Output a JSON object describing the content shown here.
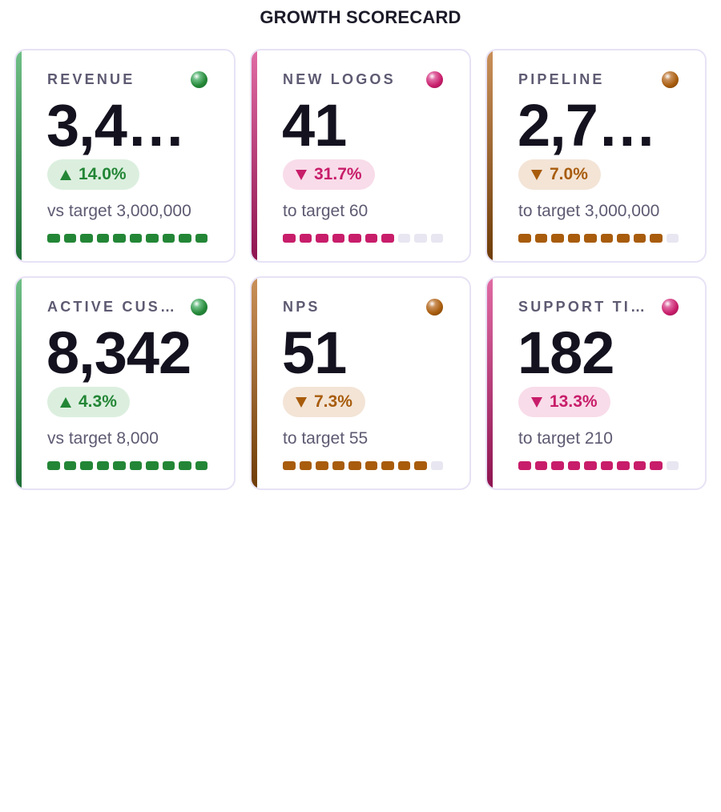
{
  "header": {
    "title": "GROWTH SCORECARD"
  },
  "colors": {
    "green": {
      "accent_top": "#6fbf86",
      "accent_bottom": "#1f6e36",
      "main": "#238636",
      "badge_bg": "#dcefdf",
      "badge_text": "#238636"
    },
    "pink": {
      "accent_top": "#e06ba4",
      "accent_bottom": "#8e1450",
      "main": "#c81d6a",
      "badge_bg": "#f8dce9",
      "badge_text": "#c81d6a"
    },
    "orange": {
      "accent_top": "#c9905a",
      "accent_bottom": "#6e3c08",
      "main": "#a85c0c",
      "badge_bg": "#f3e4d6",
      "badge_text": "#a85c0c"
    },
    "empty_segment": "#e7e6f1"
  },
  "cards": [
    {
      "label": "REVENUE",
      "value": "3,4…",
      "status": "green",
      "status_icon": "status-dot-icon",
      "trend": "up",
      "trend_icon": "triangle-up-icon",
      "change": "14.0%",
      "subtitle": "vs target 3,000,000",
      "progress_segments_filled": 10,
      "progress_segments_total": 10
    },
    {
      "label": "NEW LOGOS",
      "value": "41",
      "status": "pink",
      "status_icon": "status-dot-icon",
      "trend": "down",
      "trend_icon": "triangle-down-icon",
      "change": "31.7%",
      "subtitle": "to target 60",
      "progress_segments_filled": 7,
      "progress_segments_total": 10
    },
    {
      "label": "PIPELINE",
      "value": "2,7…",
      "status": "orange",
      "status_icon": "status-dot-icon",
      "trend": "down",
      "trend_icon": "triangle-down-icon",
      "change": "7.0%",
      "subtitle": "to target 3,000,000",
      "progress_segments_filled": 9,
      "progress_segments_total": 10
    },
    {
      "label": "ACTIVE CUS…",
      "value": "8,342",
      "status": "green",
      "status_icon": "status-dot-icon",
      "trend": "up",
      "trend_icon": "triangle-up-icon",
      "change": "4.3%",
      "subtitle": "vs target 8,000",
      "progress_segments_filled": 10,
      "progress_segments_total": 10
    },
    {
      "label": "NPS",
      "value": "51",
      "status": "orange",
      "status_icon": "status-dot-icon",
      "trend": "down",
      "trend_icon": "triangle-down-icon",
      "change": "7.3%",
      "subtitle": "to target 55",
      "progress_segments_filled": 9,
      "progress_segments_total": 10
    },
    {
      "label": "SUPPORT TI…",
      "value": "182",
      "status": "pink",
      "status_icon": "status-dot-icon",
      "trend": "down",
      "trend_icon": "triangle-down-icon",
      "change": "13.3%",
      "subtitle": "to target 210",
      "progress_segments_filled": 9,
      "progress_segments_total": 10
    }
  ]
}
